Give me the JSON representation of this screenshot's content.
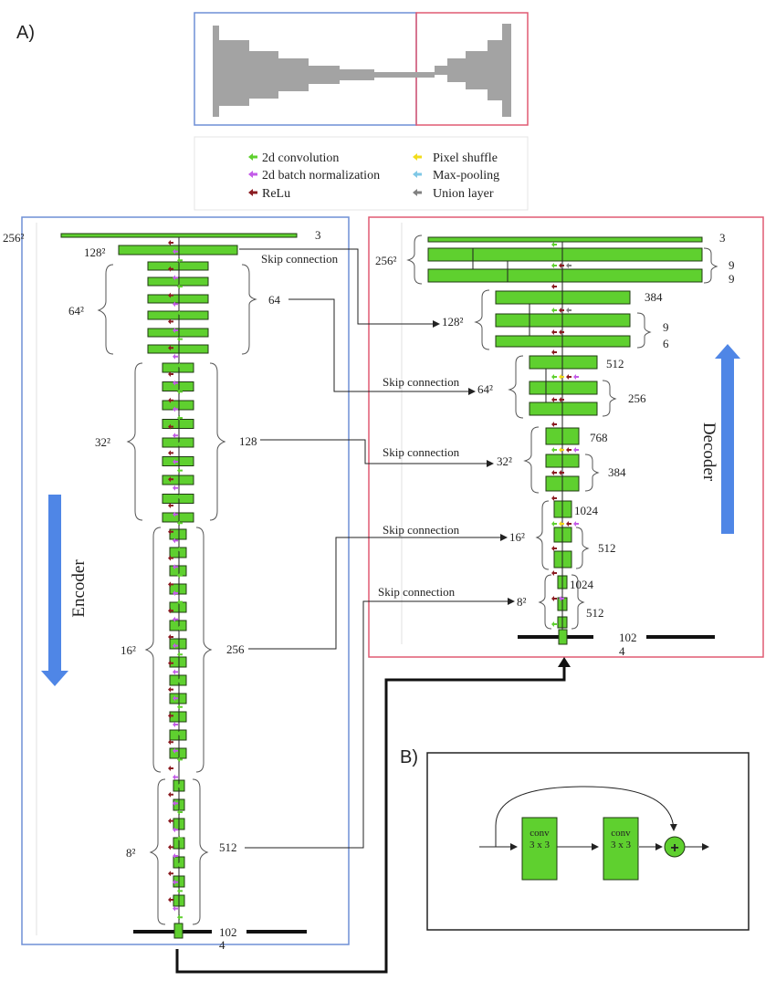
{
  "panel_labels": {
    "a": "A)",
    "b": "B)"
  },
  "legend": {
    "conv": "2d convolution",
    "bn": "2d batch normalization",
    "relu": "ReLu",
    "shuffle": "Pixel shuffle",
    "maxpool": "Max-pooling",
    "union": "Union layer"
  },
  "colors": {
    "conv": "#5fd02f",
    "bn": "#c35be8",
    "relu": "#8b1c22",
    "shuffle": "#f2dc1c",
    "maxpool": "#7fc8e6",
    "union": "#808080",
    "encoder_frame": "#6f8fd6",
    "decoder_frame": "#e05a72",
    "arrow": "#4f86e6"
  },
  "encoder": {
    "title": "Encoder",
    "res": {
      "r256": "256²",
      "r128": "128²",
      "r64": "64²",
      "r32": "32²",
      "r16": "16²",
      "r8": "8²"
    },
    "channels": {
      "c3": "3",
      "c64": "64",
      "c128": "128",
      "c256": "256",
      "c512": "512"
    },
    "bottom_channels": "102",
    "bottom_num": "4"
  },
  "decoder": {
    "title": "Decoder",
    "res": {
      "r256": "256²",
      "r128": "128²",
      "r64": "64²",
      "r32": "32²",
      "r16": "16²",
      "r8": "8²"
    },
    "channels": {
      "c3": "3",
      "c9a": "9",
      "c9b": "9",
      "c384": "384",
      "c9c": "9",
      "c6": "6",
      "c512": "512",
      "c256": "256",
      "c768": "768",
      "c384b": "384",
      "c1024a": "1024",
      "c512b": "512",
      "c1024b": "1024",
      "c512c": "512"
    },
    "bottom_channels": "102",
    "bottom_num": "4"
  },
  "skip_label": "Skip connection",
  "block_b": {
    "conv1": "conv",
    "conv1_size": "3 x 3",
    "conv2": "conv",
    "conv2_size": "3 x 3",
    "sum": "+"
  }
}
